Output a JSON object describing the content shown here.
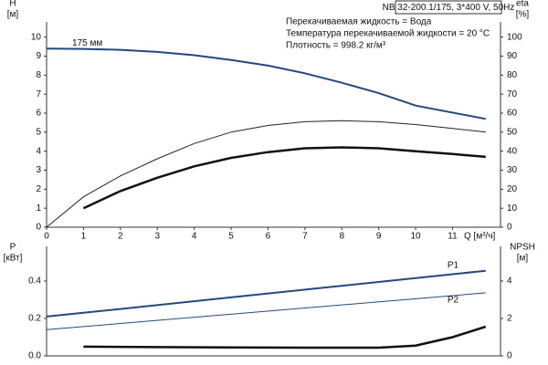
{
  "chart_data": [
    {
      "type": "line",
      "header": "NB 32-200.1/175, 3*400 V, 50Hz",
      "annotations": [
        "Перекачиваемая жидкость = Вода",
        "Температура перекачиваемой жидкости = 20 °C",
        "Плотность = 998.2 кг/м³"
      ],
      "ylabel": [
        "H",
        "[м]"
      ],
      "y2label": [
        "eta",
        "[%]"
      ],
      "xlabel": "Q [м³/ч]",
      "xlim": [
        0,
        12.3
      ],
      "xticks": [
        0,
        1,
        2,
        3,
        4,
        5,
        6,
        7,
        8,
        9,
        10,
        11
      ],
      "ylim": [
        0,
        10.8
      ],
      "yticks": [
        0,
        1,
        2,
        3,
        4,
        5,
        6,
        7,
        8,
        9,
        10
      ],
      "y2lim": [
        0,
        108
      ],
      "y2ticks": [
        0,
        10,
        20,
        30,
        40,
        50,
        60,
        70,
        80,
        90,
        100
      ],
      "series": [
        {
          "name": "175 мм",
          "color": "#24487d",
          "width": 2,
          "x": [
            0,
            1,
            2,
            3,
            4,
            5,
            6,
            7,
            8,
            9,
            10,
            11.9
          ],
          "values": [
            9.4,
            9.38,
            9.33,
            9.22,
            9.05,
            8.8,
            8.5,
            8.1,
            7.6,
            7.05,
            6.4,
            5.7
          ]
        },
        {
          "color": "#222222",
          "width": 1,
          "axis": "y2",
          "x": [
            0,
            1,
            2,
            3,
            4,
            5,
            6,
            7,
            8,
            9,
            10,
            11,
            11.9
          ],
          "values": [
            0,
            16,
            27,
            36,
            44,
            50,
            53.5,
            55.5,
            56,
            55.5,
            54,
            52,
            50
          ]
        },
        {
          "color": "#111111",
          "width": 2.5,
          "axis": "y2",
          "x": [
            1,
            2,
            3,
            4,
            5,
            6,
            7,
            8,
            9,
            10,
            11,
            11.9
          ],
          "values": [
            10,
            19,
            26,
            32,
            36.5,
            39.5,
            41.5,
            42,
            41.5,
            40,
            38.5,
            37
          ]
        }
      ]
    },
    {
      "type": "line",
      "ylabel": [
        "P",
        "[кВт]"
      ],
      "y2label": [
        "NPSH",
        "[м]"
      ],
      "xlim": [
        0,
        12.3
      ],
      "ylim": [
        0,
        0.585
      ],
      "yticks": [
        {
          "value": 0,
          "label": "0.0"
        },
        0.2,
        0.4
      ],
      "y2lim": [
        0,
        5.85
      ],
      "y2ticks": [
        0,
        2,
        4
      ],
      "series": [
        {
          "name": "P1",
          "color": "#24487d",
          "width": 2,
          "x": [
            0,
            1,
            11.9
          ],
          "values": [
            0.21,
            0.23,
            0.455
          ]
        },
        {
          "name": "P2",
          "color": "#24487d",
          "width": 1,
          "x": [
            0,
            11.9
          ],
          "values": [
            0.14,
            0.337
          ]
        },
        {
          "color": "#111111",
          "width": 2.5,
          "axis": "y2",
          "x": [
            1,
            3,
            5,
            7,
            9,
            10,
            11,
            11.9
          ],
          "values": [
            0.49,
            0.47,
            0.45,
            0.44,
            0.44,
            0.55,
            1.0,
            1.56
          ]
        }
      ]
    }
  ]
}
